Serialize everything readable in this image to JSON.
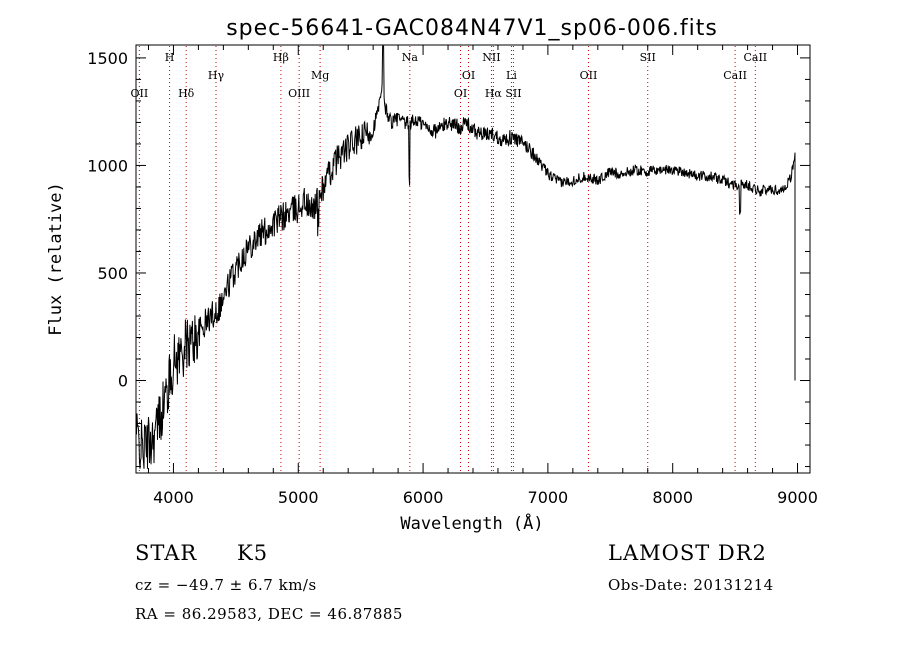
{
  "chart_data": {
    "type": "line",
    "title": "spec-56641-GAC084N47V1_sp06-006.fits",
    "xlabel": "Wavelength (Å)",
    "ylabel": "Flux (relative)",
    "xlim": [
      3700,
      9100
    ],
    "ylim": [
      -430,
      1560
    ],
    "x_ticks": [
      4000,
      5000,
      6000,
      7000,
      8000,
      9000
    ],
    "y_ticks": [
      0,
      500,
      1000,
      1500
    ],
    "grid": false,
    "line_color": "#000000",
    "marker_color": "#cc0000",
    "lines": [
      {
        "label": "OII",
        "wavelength": 3727,
        "row": 3
      },
      {
        "label": "H",
        "wavelength": 3969,
        "row": 0
      },
      {
        "label": "Hδ",
        "wavelength": 4102,
        "row": 3
      },
      {
        "label": "Hγ",
        "wavelength": 4341,
        "row": 1
      },
      {
        "label": "Hβ",
        "wavelength": 4861,
        "row": 0
      },
      {
        "label": "OIII",
        "wavelength": 5007,
        "row": 3
      },
      {
        "label": "Mg",
        "wavelength": 5175,
        "row": 1
      },
      {
        "label": "Na",
        "wavelength": 5894,
        "row": 0
      },
      {
        "label": "OI",
        "wavelength": 6300,
        "row": 3
      },
      {
        "label": "OI",
        "wavelength": 6364,
        "row": 1
      },
      {
        "label": "NII",
        "wavelength": 6548,
        "row": 0
      },
      {
        "label": "Hα",
        "wavelength": 6563,
        "row": 3
      },
      {
        "label": "Li",
        "wavelength": 6708,
        "row": 1
      },
      {
        "label": "SII",
        "wavelength": 6724,
        "row": 3
      },
      {
        "label": "OII",
        "wavelength": 7325,
        "row": 1
      },
      {
        "label": "SII",
        "wavelength": 7800,
        "row": 0
      },
      {
        "label": "CaII",
        "wavelength": 8500,
        "row": 1
      },
      {
        "label": "CaII",
        "wavelength": 8662,
        "row": 0
      }
    ],
    "series": [
      {
        "x": [
          3700,
          3750,
          3800,
          3850,
          3900,
          3950,
          4000,
          4050,
          4100,
          4150,
          4200,
          4250,
          4300,
          4350,
          4400,
          4450,
          4500,
          4550,
          4600,
          4650,
          4700,
          4750,
          4800,
          4850,
          4900,
          4950,
          5000,
          5050,
          5100,
          5150,
          5200,
          5250,
          5300,
          5350,
          5400,
          5450,
          5500,
          5550,
          5600,
          5650,
          5680,
          5700,
          5750,
          5800,
          5850,
          5900,
          5950,
          6000,
          6050,
          6100,
          6150,
          6200,
          6250,
          6300,
          6350,
          6400,
          6450,
          6500,
          6550,
          6600,
          6650,
          6700,
          6750,
          6800,
          6850,
          6900,
          6950,
          7000,
          7100,
          7200,
          7300,
          7400,
          7500,
          7600,
          7700,
          7800,
          7900,
          8000,
          8100,
          8200,
          8300,
          8400,
          8500,
          8600,
          8700,
          8800,
          8850,
          8900,
          8950,
          8980
        ],
        "y": [
          -250,
          -320,
          -290,
          -250,
          -150,
          -50,
          80,
          120,
          160,
          180,
          220,
          260,
          300,
          330,
          380,
          460,
          520,
          580,
          620,
          660,
          680,
          700,
          730,
          750,
          770,
          790,
          800,
          840,
          780,
          840,
          900,
          960,
          1020,
          1060,
          1080,
          1110,
          1120,
          1150,
          1170,
          1280,
          1380,
          1260,
          1200,
          1220,
          1190,
          1200,
          1210,
          1190,
          1170,
          1160,
          1180,
          1200,
          1190,
          1180,
          1200,
          1160,
          1150,
          1140,
          1150,
          1130,
          1120,
          1130,
          1120,
          1100,
          1080,
          1040,
          1000,
          960,
          920,
          930,
          950,
          930,
          970,
          960,
          980,
          970,
          980,
          980,
          970,
          950,
          950,
          930,
          910,
          910,
          880,
          890,
          880,
          900,
          950,
          1050
        ]
      }
    ]
  },
  "info": {
    "object_type": "STAR",
    "subclass": "K5",
    "survey": "LAMOST DR2",
    "cz": "cz = −49.7 ± 6.7 km/s",
    "obs_date": "Obs-Date: 20131214",
    "coords": "RA =  86.29583, DEC =  46.87885"
  }
}
